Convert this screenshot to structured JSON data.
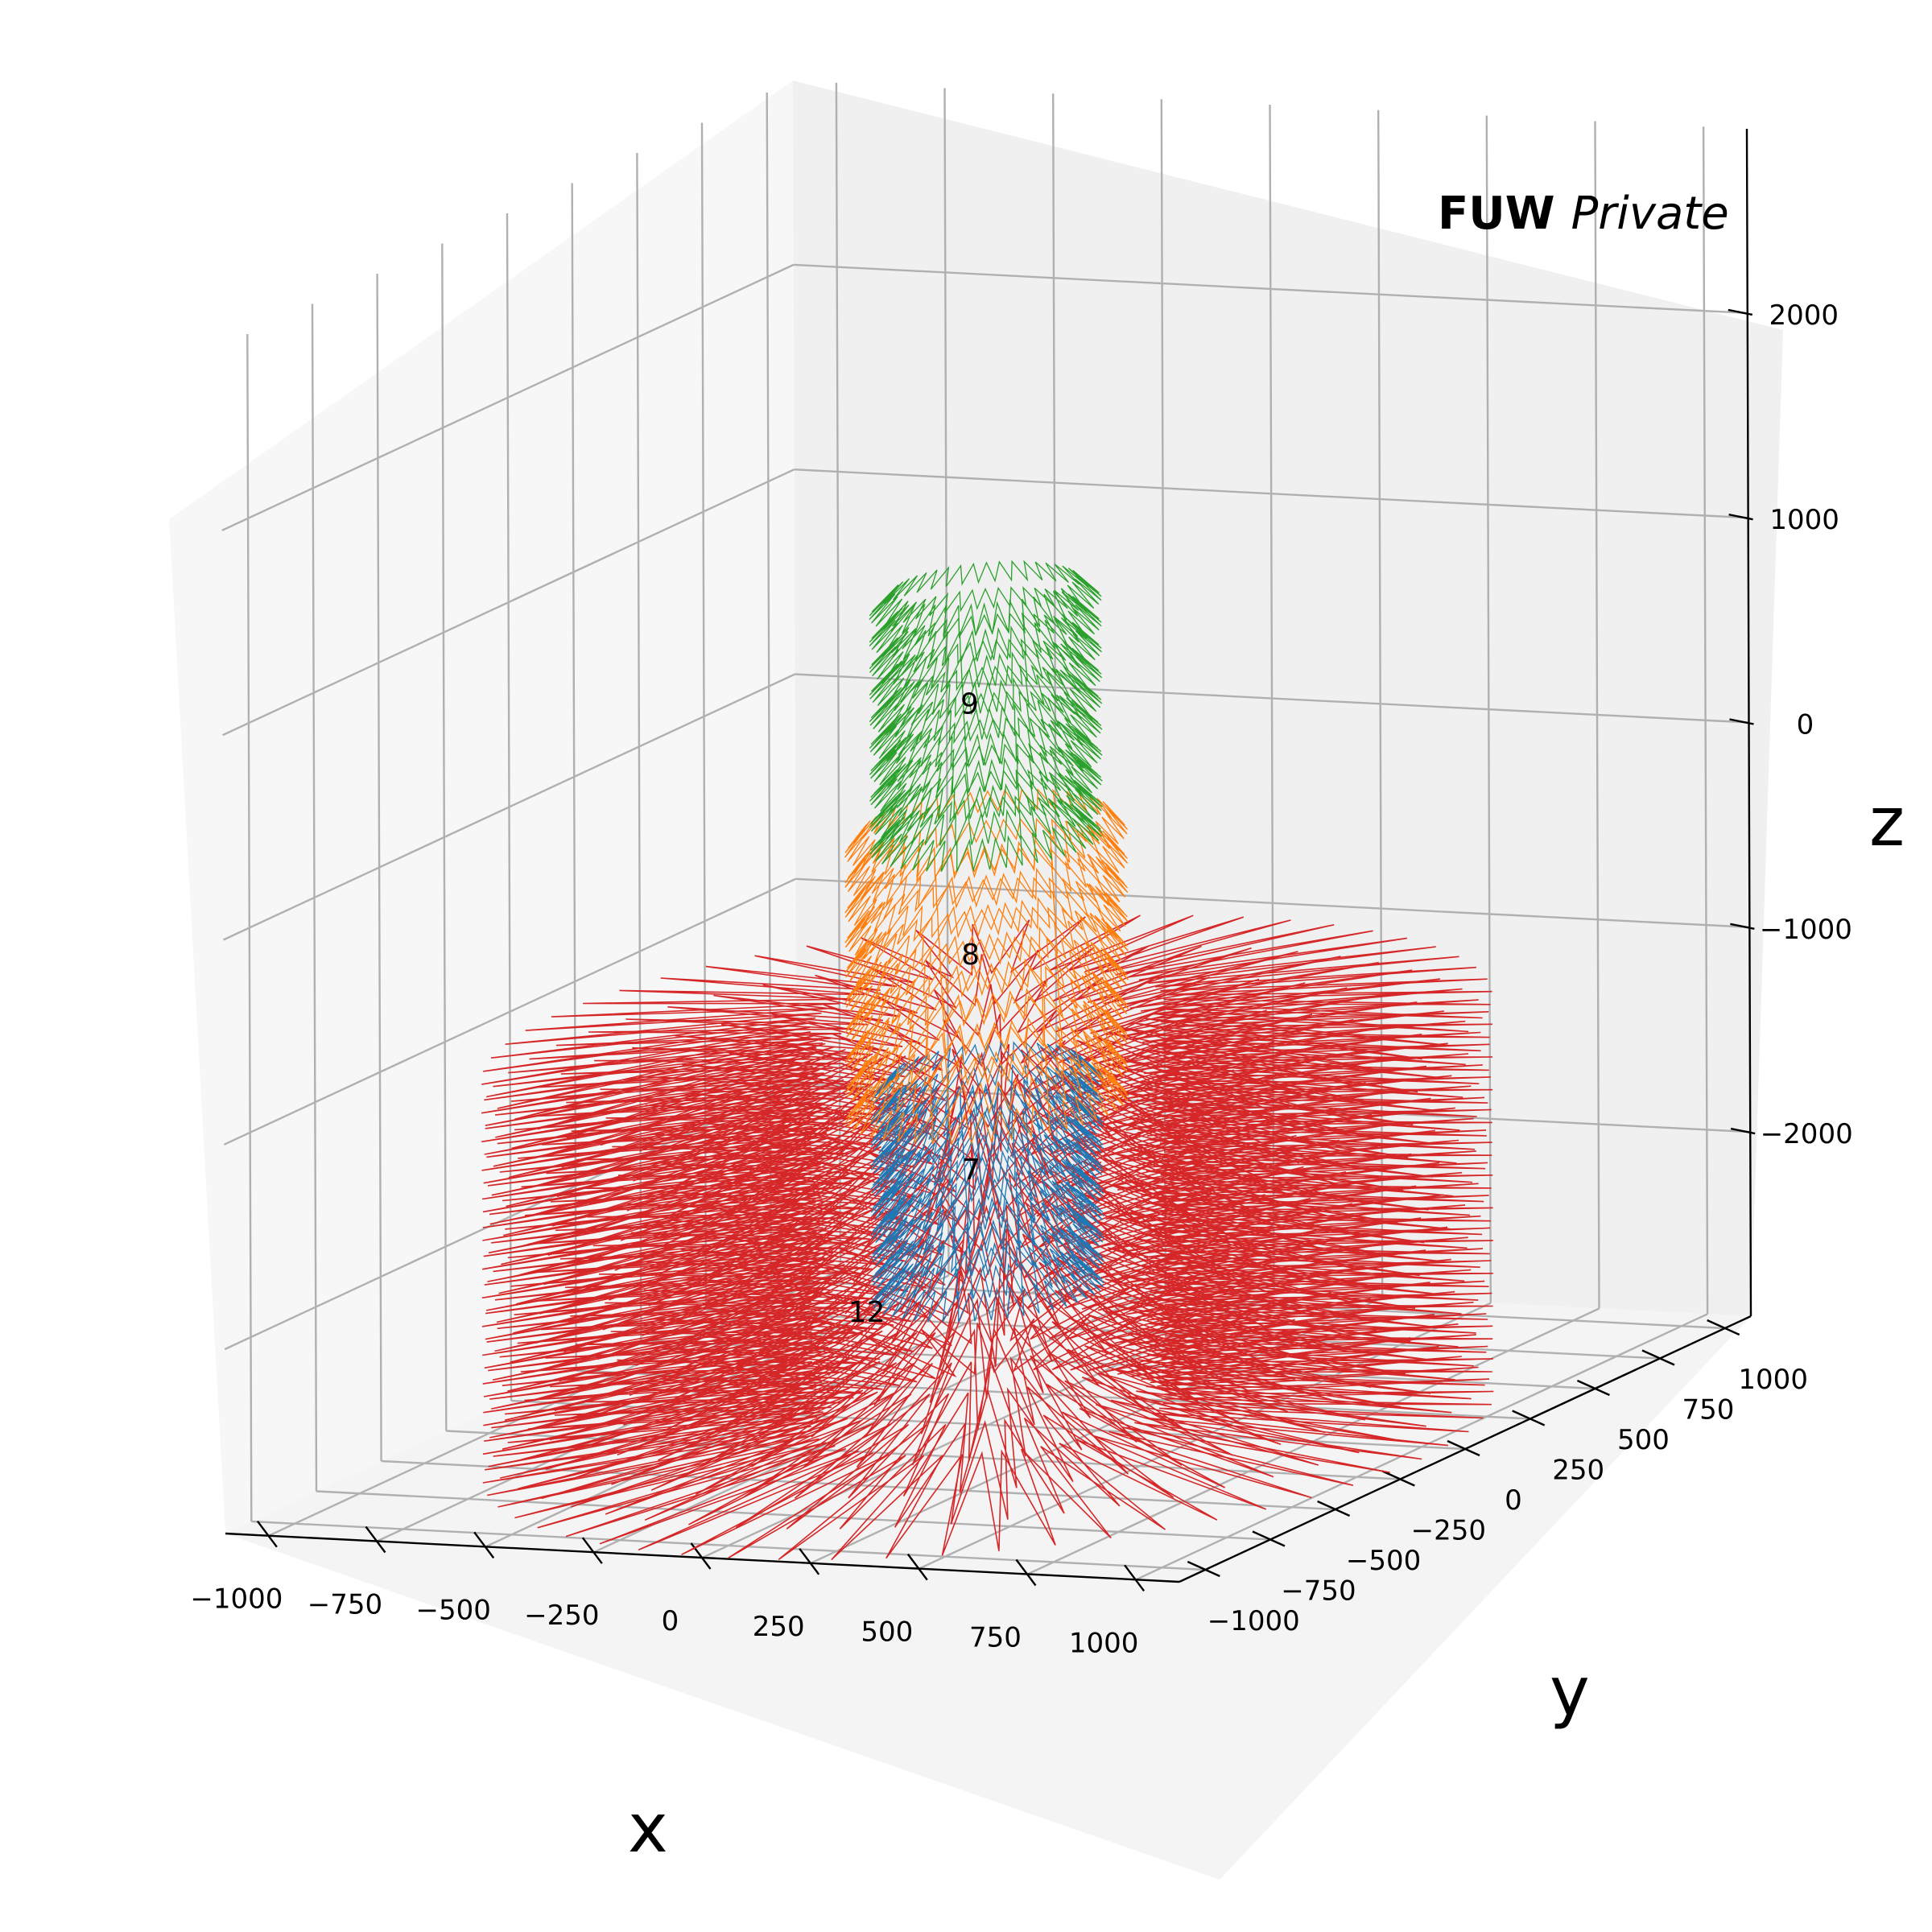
{
  "chart_data": {
    "type": "3d-wireframe",
    "title_bold": "FUW",
    "title_italic": "Private",
    "axes": {
      "x": {
        "label": "x",
        "ticks": [
          "−1000",
          "−750",
          "−500",
          "−250",
          "0",
          "250",
          "500",
          "750",
          "1000"
        ]
      },
      "y": {
        "label": "y",
        "ticks": [
          "−1000",
          "−750",
          "−500",
          "−250",
          "0",
          "250",
          "500",
          "750",
          "1000"
        ]
      },
      "z": {
        "label": "z",
        "ticks": [
          "−2000",
          "−1000",
          "0",
          "1000",
          "2000"
        ]
      }
    },
    "grid": true,
    "series": [
      {
        "label": "12",
        "color": "#d62728",
        "radius_inner": 350,
        "radius_outer": 1000,
        "z_min": -2900,
        "z_max": -950
      },
      {
        "label": "7",
        "color": "#1f77b4",
        "radius_inner": 180,
        "radius_outer": 230,
        "z_min": -2200,
        "z_max": -1200
      },
      {
        "label": "8",
        "color": "#ff7f0e",
        "radius_inner": 240,
        "radius_outer": 280,
        "z_min": -1300,
        "z_max": 0
      },
      {
        "label": "9",
        "color": "#2ca02c",
        "radius_inner": 180,
        "radius_outer": 230,
        "z_min": 0,
        "z_max": 1150
      }
    ]
  }
}
